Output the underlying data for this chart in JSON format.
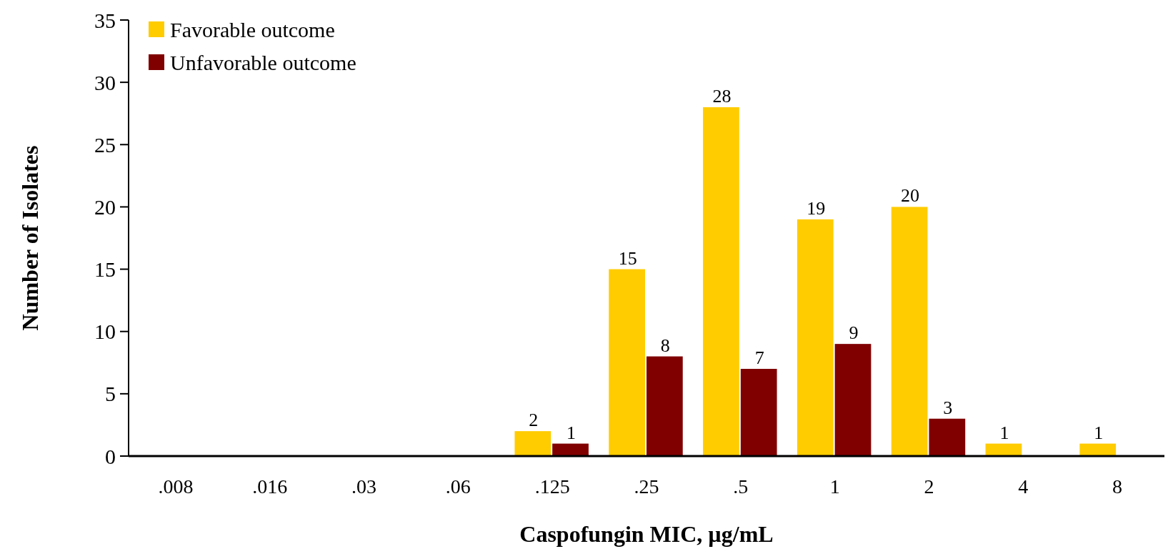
{
  "chart_data": {
    "type": "bar",
    "xlabel": "Caspofungin MIC, µg/mL",
    "ylabel": "Number of Isolates",
    "categories": [
      ".008",
      ".016",
      ".03",
      ".06",
      ".125",
      ".25",
      ".5",
      "1",
      "2",
      "4",
      "8"
    ],
    "series": [
      {
        "name": "Favorable outcome",
        "color": "#ffcc00",
        "values": [
          0,
          0,
          0,
          0,
          2,
          15,
          28,
          19,
          20,
          1,
          1
        ],
        "value_labels": [
          null,
          null,
          null,
          null,
          "2",
          "15",
          "28",
          "19",
          "20",
          "1",
          "1"
        ]
      },
      {
        "name": "Unfavorable outcome",
        "color": "#800000",
        "values": [
          0,
          0,
          0,
          0,
          1,
          8,
          7,
          9,
          3,
          0,
          0
        ],
        "value_labels": [
          null,
          null,
          null,
          null,
          "1",
          "8",
          "7",
          "9",
          "3",
          null,
          null
        ]
      }
    ],
    "ylim": [
      0,
      35
    ],
    "yticks": [
      0,
      5,
      10,
      15,
      20,
      25,
      30,
      35
    ],
    "legend": "top left",
    "grid": false
  }
}
